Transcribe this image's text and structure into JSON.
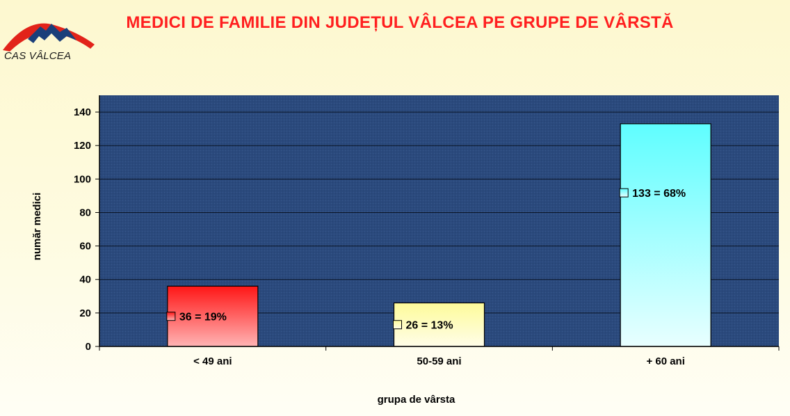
{
  "header": {
    "title": "MEDICI DE FAMILIE DIN JUDEȚUL VÂLCEA PE GRUPE DE VÂRSTĂ",
    "logo_text": "CAS VÂLCEA"
  },
  "colors": {
    "title": "#ff1f1f",
    "plot_area": "#2b4a7d",
    "gridlines": "#0a1426",
    "bar_1_top": "#ff1616",
    "bar_1_bottom": "#ffb4b4",
    "bar_2_top": "#fdfb9a",
    "bar_2_bottom": "#fffde8",
    "bar_3_top": "#5ffeff",
    "bar_3_bottom": "#e8ffff"
  },
  "chart_data": {
    "type": "bar",
    "categories": [
      "< 49 ani",
      "50-59 ani",
      "+ 60 ani"
    ],
    "values": [
      36,
      26,
      133
    ],
    "data_labels": [
      "36 = 19%",
      "26 = 13%",
      "133 = 68%"
    ],
    "title": "MEDICI DE FAMILIE DIN JUDEȚUL VÂLCEA PE GRUPE DE VÂRSTĂ",
    "xlabel": "grupa de vârsta",
    "ylabel": "număr medici",
    "ylim": [
      0,
      150
    ],
    "yticks": [
      0,
      20,
      40,
      60,
      80,
      100,
      120,
      140
    ],
    "grid": true,
    "legend": "none"
  }
}
